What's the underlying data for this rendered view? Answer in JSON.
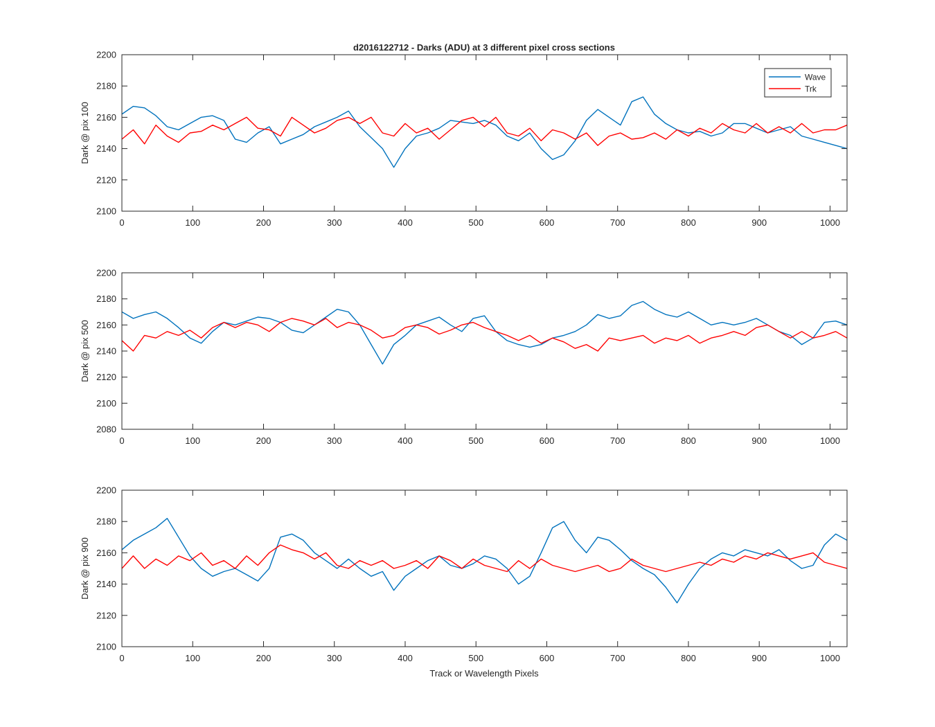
{
  "figure": {
    "title": "d2016122712 - Darks (ADU) at 3 different pixel cross sections",
    "xlabel": "Track or Wavelength Pixels"
  },
  "legend": {
    "placement": "top-right",
    "entries": [
      {
        "name": "Wave",
        "color": "#0072BD"
      },
      {
        "name": "Trk",
        "color": "#FF0000"
      }
    ]
  },
  "chart_data": [
    {
      "type": "line",
      "ylabel": "Dark @ pix 100",
      "xlim": [
        0,
        1024
      ],
      "ylim": [
        2100,
        2200
      ],
      "xticks": [
        0,
        100,
        200,
        300,
        400,
        500,
        600,
        700,
        800,
        900,
        1000
      ],
      "yticks": [
        2100,
        2120,
        2140,
        2160,
        2180,
        2200
      ],
      "legend": true,
      "series": [
        {
          "name": "Wave",
          "color": "#0072BD",
          "x": [
            0,
            16,
            32,
            48,
            64,
            80,
            96,
            112,
            128,
            144,
            160,
            176,
            192,
            208,
            224,
            240,
            256,
            272,
            288,
            304,
            320,
            336,
            352,
            368,
            384,
            400,
            416,
            432,
            448,
            464,
            480,
            496,
            512,
            528,
            544,
            560,
            576,
            592,
            608,
            624,
            640,
            656,
            672,
            688,
            704,
            720,
            736,
            752,
            768,
            784,
            800,
            816,
            832,
            848,
            864,
            880,
            896,
            912,
            928,
            944,
            960,
            976,
            992,
            1008,
            1024
          ],
          "y": [
            2162,
            2167,
            2166,
            2161,
            2154,
            2152,
            2156,
            2160,
            2161,
            2158,
            2146,
            2144,
            2150,
            2154,
            2143,
            2146,
            2149,
            2154,
            2157,
            2160,
            2164,
            2154,
            2147,
            2140,
            2128,
            2140,
            2148,
            2150,
            2153,
            2158,
            2157,
            2156,
            2158,
            2155,
            2148,
            2145,
            2150,
            2140,
            2133,
            2136,
            2145,
            2158,
            2165,
            2160,
            2155,
            2170,
            2173,
            2162,
            2156,
            2152,
            2150,
            2151,
            2148,
            2150,
            2156,
            2156,
            2153,
            2150,
            2152,
            2154,
            2148,
            2146,
            2144,
            2142,
            2140
          ]
        },
        {
          "name": "Trk",
          "color": "#FF0000",
          "x": [
            0,
            16,
            32,
            48,
            64,
            80,
            96,
            112,
            128,
            144,
            160,
            176,
            192,
            208,
            224,
            240,
            256,
            272,
            288,
            304,
            320,
            336,
            352,
            368,
            384,
            400,
            416,
            432,
            448,
            464,
            480,
            496,
            512,
            528,
            544,
            560,
            576,
            592,
            608,
            624,
            640,
            656,
            672,
            688,
            704,
            720,
            736,
            752,
            768,
            784,
            800,
            816,
            832,
            848,
            864,
            880,
            896,
            912,
            928,
            944,
            960,
            976,
            992,
            1008,
            1024
          ],
          "y": [
            2146,
            2152,
            2143,
            2155,
            2148,
            2144,
            2150,
            2151,
            2155,
            2152,
            2156,
            2160,
            2153,
            2152,
            2148,
            2160,
            2155,
            2150,
            2153,
            2158,
            2160,
            2156,
            2160,
            2150,
            2148,
            2156,
            2150,
            2153,
            2146,
            2152,
            2158,
            2160,
            2154,
            2160,
            2150,
            2148,
            2153,
            2145,
            2152,
            2150,
            2146,
            2150,
            2142,
            2148,
            2150,
            2146,
            2147,
            2150,
            2146,
            2152,
            2148,
            2153,
            2150,
            2156,
            2152,
            2150,
            2156,
            2150,
            2154,
            2150,
            2156,
            2150,
            2152,
            2152,
            2155
          ]
        }
      ]
    },
    {
      "type": "line",
      "ylabel": "Dark @ pix 500",
      "xlim": [
        0,
        1024
      ],
      "ylim": [
        2080,
        2200
      ],
      "xticks": [
        0,
        100,
        200,
        300,
        400,
        500,
        600,
        700,
        800,
        900,
        1000
      ],
      "yticks": [
        2080,
        2100,
        2120,
        2140,
        2160,
        2180,
        2200
      ],
      "legend": false,
      "series": [
        {
          "name": "Wave",
          "color": "#0072BD",
          "x": [
            0,
            16,
            32,
            48,
            64,
            80,
            96,
            112,
            128,
            144,
            160,
            176,
            192,
            208,
            224,
            240,
            256,
            272,
            288,
            304,
            320,
            336,
            352,
            368,
            384,
            400,
            416,
            432,
            448,
            464,
            480,
            496,
            512,
            528,
            544,
            560,
            576,
            592,
            608,
            624,
            640,
            656,
            672,
            688,
            704,
            720,
            736,
            752,
            768,
            784,
            800,
            816,
            832,
            848,
            864,
            880,
            896,
            912,
            928,
            944,
            960,
            976,
            992,
            1008,
            1024
          ],
          "y": [
            2170,
            2165,
            2168,
            2170,
            2165,
            2158,
            2150,
            2146,
            2155,
            2162,
            2160,
            2163,
            2166,
            2165,
            2162,
            2156,
            2154,
            2160,
            2166,
            2172,
            2170,
            2160,
            2145,
            2130,
            2145,
            2152,
            2160,
            2163,
            2166,
            2160,
            2155,
            2165,
            2167,
            2155,
            2148,
            2145,
            2143,
            2145,
            2150,
            2152,
            2155,
            2160,
            2168,
            2165,
            2167,
            2175,
            2178,
            2172,
            2168,
            2166,
            2170,
            2165,
            2160,
            2162,
            2160,
            2162,
            2165,
            2160,
            2155,
            2152,
            2145,
            2150,
            2162,
            2163,
            2160
          ]
        },
        {
          "name": "Trk",
          "color": "#FF0000",
          "x": [
            0,
            16,
            32,
            48,
            64,
            80,
            96,
            112,
            128,
            144,
            160,
            176,
            192,
            208,
            224,
            240,
            256,
            272,
            288,
            304,
            320,
            336,
            352,
            368,
            384,
            400,
            416,
            432,
            448,
            464,
            480,
            496,
            512,
            528,
            544,
            560,
            576,
            592,
            608,
            624,
            640,
            656,
            672,
            688,
            704,
            720,
            736,
            752,
            768,
            784,
            800,
            816,
            832,
            848,
            864,
            880,
            896,
            912,
            928,
            944,
            960,
            976,
            992,
            1008,
            1024
          ],
          "y": [
            2148,
            2140,
            2152,
            2150,
            2155,
            2152,
            2156,
            2150,
            2158,
            2162,
            2158,
            2162,
            2160,
            2155,
            2162,
            2165,
            2163,
            2160,
            2165,
            2158,
            2162,
            2160,
            2156,
            2150,
            2152,
            2158,
            2160,
            2158,
            2153,
            2156,
            2160,
            2162,
            2158,
            2155,
            2152,
            2148,
            2152,
            2146,
            2150,
            2147,
            2142,
            2145,
            2140,
            2150,
            2148,
            2150,
            2152,
            2146,
            2150,
            2148,
            2152,
            2146,
            2150,
            2152,
            2155,
            2152,
            2158,
            2160,
            2155,
            2150,
            2155,
            2150,
            2152,
            2155,
            2150
          ]
        }
      ]
    },
    {
      "type": "line",
      "ylabel": "Dark @ pix 900",
      "xlim": [
        0,
        1024
      ],
      "ylim": [
        2100,
        2200
      ],
      "xticks": [
        0,
        100,
        200,
        300,
        400,
        500,
        600,
        700,
        800,
        900,
        1000
      ],
      "yticks": [
        2100,
        2120,
        2140,
        2160,
        2180,
        2200
      ],
      "legend": false,
      "series": [
        {
          "name": "Wave",
          "color": "#0072BD",
          "x": [
            0,
            16,
            32,
            48,
            64,
            80,
            96,
            112,
            128,
            144,
            160,
            176,
            192,
            208,
            224,
            240,
            256,
            272,
            288,
            304,
            320,
            336,
            352,
            368,
            384,
            400,
            416,
            432,
            448,
            464,
            480,
            496,
            512,
            528,
            544,
            560,
            576,
            592,
            608,
            624,
            640,
            656,
            672,
            688,
            704,
            720,
            736,
            752,
            768,
            784,
            800,
            816,
            832,
            848,
            864,
            880,
            896,
            912,
            928,
            944,
            960,
            976,
            992,
            1008,
            1024
          ],
          "y": [
            2162,
            2168,
            2172,
            2176,
            2182,
            2170,
            2158,
            2150,
            2145,
            2148,
            2150,
            2146,
            2142,
            2150,
            2170,
            2172,
            2168,
            2160,
            2155,
            2150,
            2156,
            2150,
            2145,
            2148,
            2136,
            2145,
            2150,
            2155,
            2158,
            2152,
            2150,
            2153,
            2158,
            2156,
            2150,
            2140,
            2145,
            2160,
            2176,
            2180,
            2168,
            2160,
            2170,
            2168,
            2162,
            2155,
            2150,
            2146,
            2138,
            2128,
            2140,
            2150,
            2156,
            2160,
            2158,
            2162,
            2160,
            2158,
            2162,
            2155,
            2150,
            2152,
            2165,
            2172,
            2168
          ]
        },
        {
          "name": "Trk",
          "color": "#FF0000",
          "x": [
            0,
            16,
            32,
            48,
            64,
            80,
            96,
            112,
            128,
            144,
            160,
            176,
            192,
            208,
            224,
            240,
            256,
            272,
            288,
            304,
            320,
            336,
            352,
            368,
            384,
            400,
            416,
            432,
            448,
            464,
            480,
            496,
            512,
            528,
            544,
            560,
            576,
            592,
            608,
            624,
            640,
            656,
            672,
            688,
            704,
            720,
            736,
            752,
            768,
            784,
            800,
            816,
            832,
            848,
            864,
            880,
            896,
            912,
            928,
            944,
            960,
            976,
            992,
            1008,
            1024
          ],
          "y": [
            2150,
            2158,
            2150,
            2156,
            2152,
            2158,
            2155,
            2160,
            2152,
            2155,
            2150,
            2158,
            2152,
            2160,
            2165,
            2162,
            2160,
            2156,
            2160,
            2152,
            2150,
            2155,
            2152,
            2155,
            2150,
            2152,
            2155,
            2150,
            2158,
            2155,
            2150,
            2156,
            2152,
            2150,
            2148,
            2155,
            2150,
            2156,
            2152,
            2150,
            2148,
            2150,
            2152,
            2148,
            2150,
            2156,
            2152,
            2150,
            2148,
            2150,
            2152,
            2154,
            2152,
            2156,
            2154,
            2158,
            2156,
            2160,
            2158,
            2156,
            2158,
            2160,
            2154,
            2152,
            2150
          ]
        }
      ]
    }
  ]
}
